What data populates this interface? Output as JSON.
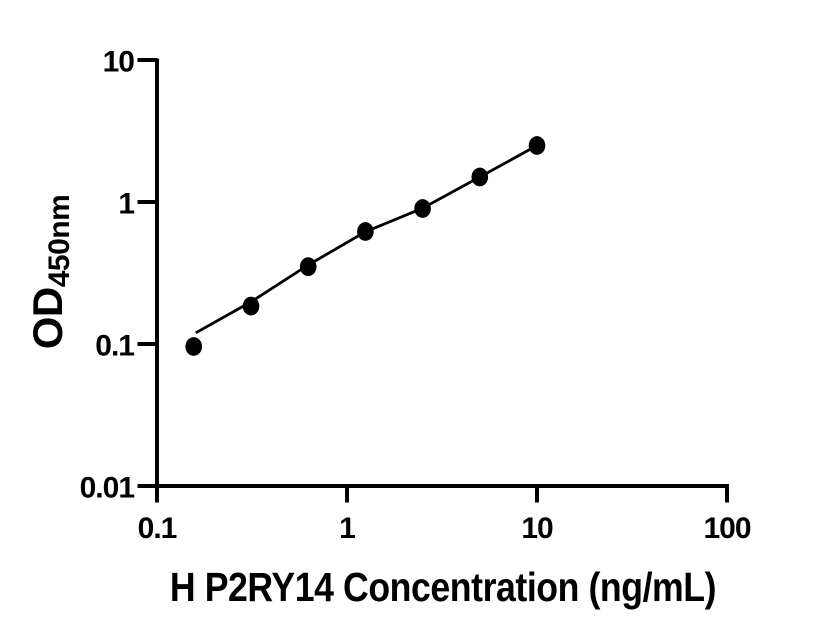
{
  "chart_data": {
    "type": "scatter",
    "title": "",
    "xlabel": "H P2RY14 Concentration (ng/mL)",
    "ylabel_main": "OD",
    "ylabel_sub": "450nm",
    "x_scale": "log10",
    "y_scale": "log10",
    "xlim": [
      0.1,
      100
    ],
    "ylim": [
      0.01,
      10
    ],
    "x_ticks": [
      {
        "value": 0.1,
        "label": "0.1"
      },
      {
        "value": 1,
        "label": "1"
      },
      {
        "value": 10,
        "label": "10"
      },
      {
        "value": 100,
        "label": "100"
      }
    ],
    "y_ticks": [
      {
        "value": 0.01,
        "label": "0.01"
      },
      {
        "value": 0.1,
        "label": "0.1"
      },
      {
        "value": 1,
        "label": "1"
      },
      {
        "value": 10,
        "label": "10"
      }
    ],
    "grid": false,
    "legend": false,
    "ink_color": "#000000",
    "background_color": "#ffffff",
    "series": [
      {
        "name": "standard-points",
        "type": "scatter",
        "marker": "filled-circle",
        "color": "#000000",
        "points": [
          {
            "x": 0.156,
            "y": 0.096
          },
          {
            "x": 0.3125,
            "y": 0.185
          },
          {
            "x": 0.625,
            "y": 0.35
          },
          {
            "x": 1.25,
            "y": 0.62
          },
          {
            "x": 2.5,
            "y": 0.9
          },
          {
            "x": 5,
            "y": 1.5
          },
          {
            "x": 10,
            "y": 2.5
          }
        ]
      },
      {
        "name": "fit-line",
        "type": "line",
        "color": "#000000",
        "points": [
          {
            "x": 0.16,
            "y": 0.12
          },
          {
            "x": 0.3125,
            "y": 0.198
          },
          {
            "x": 0.625,
            "y": 0.36
          },
          {
            "x": 1.25,
            "y": 0.617
          },
          {
            "x": 2.5,
            "y": 0.905
          },
          {
            "x": 5,
            "y": 1.5
          },
          {
            "x": 10,
            "y": 2.5
          }
        ]
      }
    ]
  }
}
